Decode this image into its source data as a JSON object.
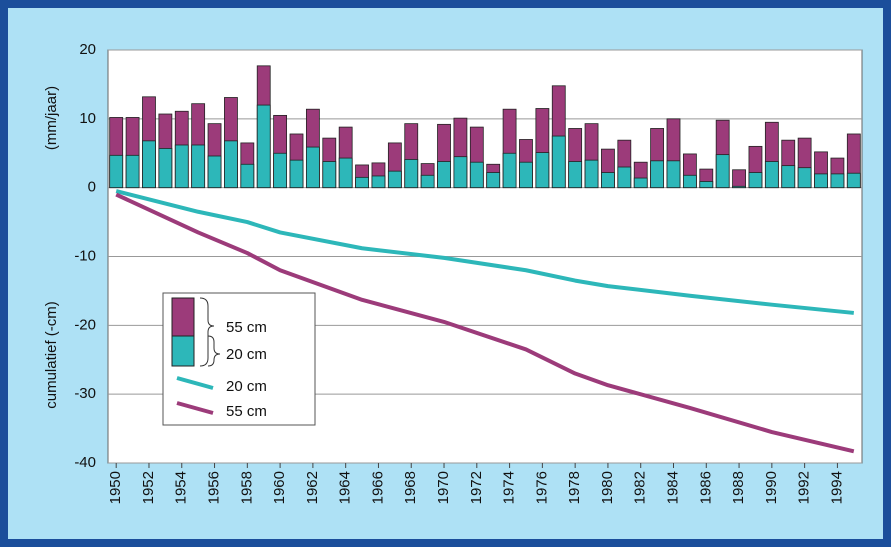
{
  "chart_data": {
    "type": "bar",
    "y_label_top": "(mm/jaar)",
    "y_label_bottom": "cumulatief (-cm)",
    "xlim": [
      1949.5,
      1995.5
    ],
    "xticks": [
      1950,
      1952,
      1954,
      1956,
      1958,
      1960,
      1962,
      1964,
      1966,
      1968,
      1970,
      1972,
      1974,
      1976,
      1978,
      1980,
      1982,
      1984,
      1986,
      1988,
      1990,
      1992,
      1994
    ],
    "ylim": [
      -40,
      20
    ],
    "yticks": [
      -40,
      -30,
      -20,
      -10,
      0,
      10,
      20
    ],
    "grid": true,
    "x": [
      1950,
      1951,
      1952,
      1953,
      1954,
      1955,
      1956,
      1957,
      1958,
      1959,
      1960,
      1961,
      1962,
      1963,
      1964,
      1965,
      1966,
      1967,
      1968,
      1969,
      1970,
      1971,
      1972,
      1973,
      1974,
      1975,
      1976,
      1977,
      1978,
      1979,
      1980,
      1981,
      1982,
      1983,
      1984,
      1985,
      1986,
      1987,
      1988,
      1989,
      1990,
      1991,
      1992,
      1993,
      1994,
      1995
    ],
    "series": [
      {
        "name": "55 cm",
        "color": "#9c3b7a",
        "values": [
          10.2,
          10.2,
          13.2,
          10.7,
          11.1,
          12.2,
          9.3,
          13.1,
          6.5,
          17.7,
          10.5,
          7.8,
          11.4,
          7.2,
          8.8,
          3.3,
          3.6,
          6.5,
          9.3,
          3.5,
          9.2,
          10.1,
          8.8,
          3.4,
          11.4,
          7.0,
          11.5,
          14.8,
          8.6,
          9.3,
          5.6,
          6.9,
          3.7,
          8.6,
          10.0,
          4.9,
          2.7,
          9.8,
          2.6,
          6.0,
          9.5,
          6.9,
          7.2,
          5.2,
          4.3,
          7.8
        ]
      },
      {
        "name": "20 cm",
        "color": "#2db7b9",
        "values": [
          4.7,
          4.7,
          6.8,
          5.7,
          6.2,
          6.2,
          4.6,
          6.8,
          3.4,
          12.0,
          5.0,
          4.0,
          5.9,
          3.8,
          4.3,
          1.5,
          1.7,
          2.4,
          4.1,
          1.8,
          3.8,
          4.5,
          3.7,
          2.2,
          5.0,
          3.7,
          5.1,
          7.5,
          3.8,
          4.0,
          2.2,
          3.0,
          1.4,
          3.9,
          3.9,
          1.8,
          0.9,
          4.8,
          0.2,
          2.2,
          3.8,
          3.2,
          2.9,
          2.0,
          2.0,
          2.1
        ]
      }
    ],
    "lines": [
      {
        "name": "20 cm",
        "color": "#2db7b9",
        "x": [
          1950,
          1955,
          1958,
          1960,
          1965,
          1970,
          1975,
          1978,
          1980,
          1985,
          1990,
          1995
        ],
        "values": [
          -0.5,
          -3.5,
          -5,
          -6.5,
          -8.8,
          -10.2,
          -12,
          -13.5,
          -14.3,
          -15.7,
          -17,
          -18.2
        ]
      },
      {
        "name": "55 cm",
        "color": "#9c3b7a",
        "x": [
          1950,
          1955,
          1958,
          1960,
          1965,
          1970,
          1975,
          1978,
          1980,
          1985,
          1990,
          1995
        ],
        "values": [
          -1,
          -6.5,
          -9.5,
          -12,
          -16.3,
          -19.5,
          -23.5,
          -27,
          -28.7,
          -32,
          -35.5,
          -38.3
        ]
      }
    ]
  }
}
